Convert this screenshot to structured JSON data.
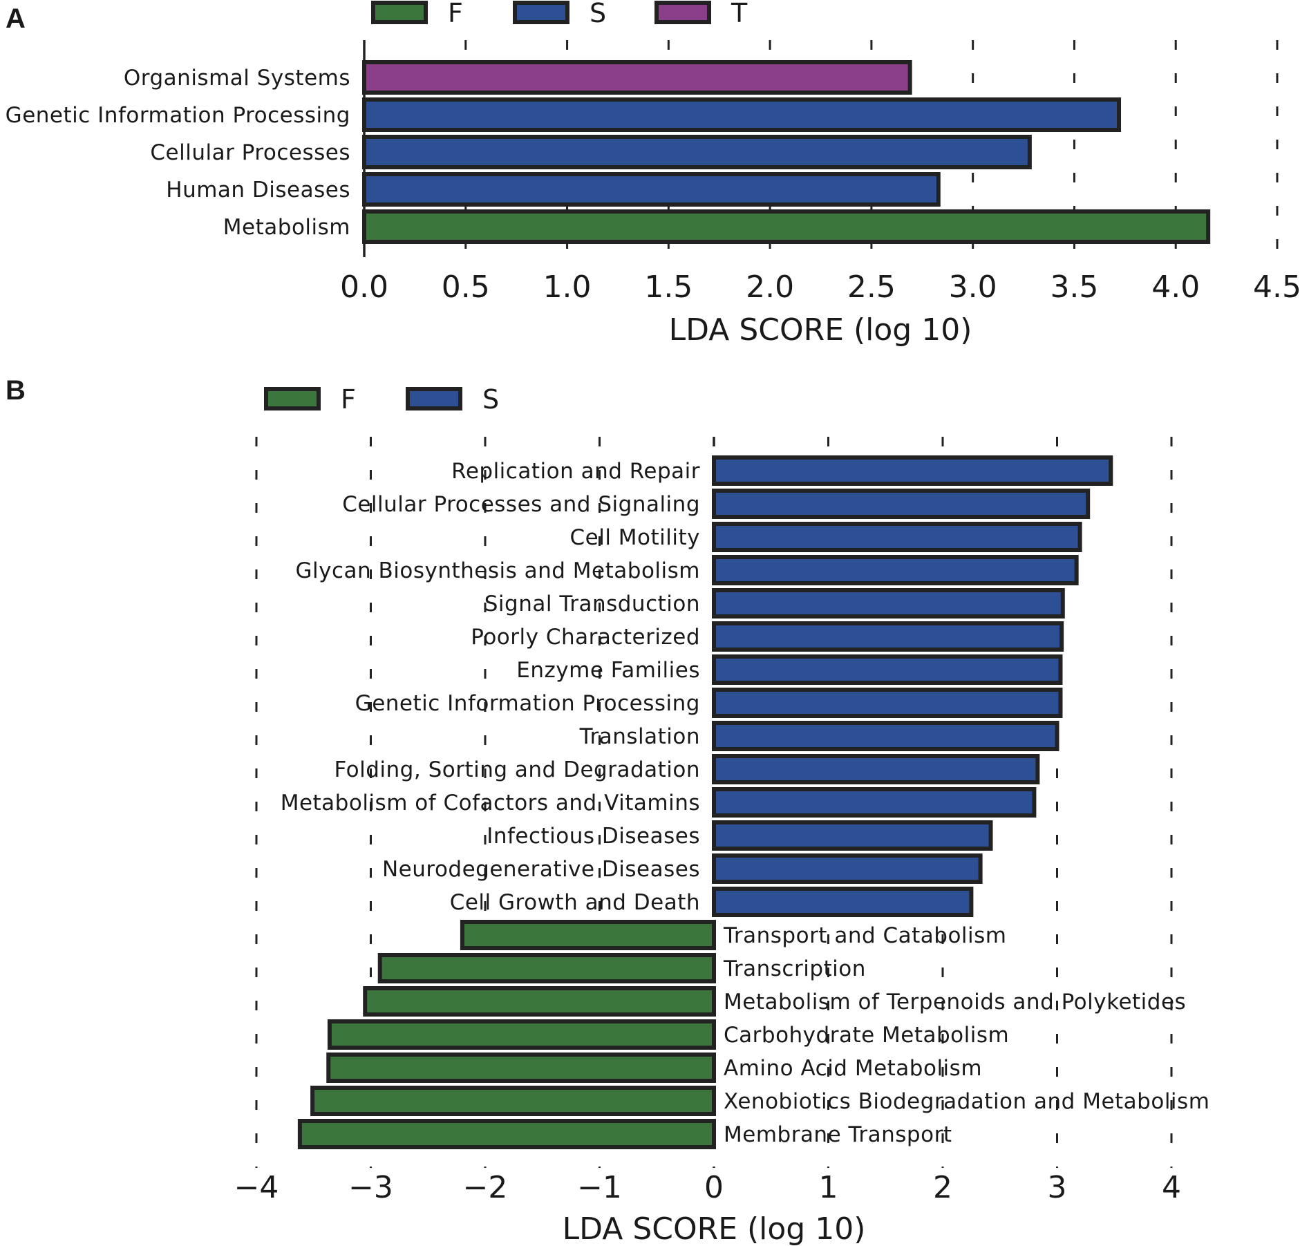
{
  "colors": {
    "F": "#3b763d",
    "S": "#2d4f94",
    "T": "#8b3f8b",
    "edge": "#222222",
    "grid": "#222222"
  },
  "chart_data": [
    {
      "panel": "A",
      "type": "bar",
      "orientation": "horizontal",
      "xlabel": "LDA SCORE (log 10)",
      "xlim": [
        0,
        4.5
      ],
      "ticks": [
        0.0,
        0.5,
        1.0,
        1.5,
        2.0,
        2.5,
        3.0,
        3.5,
        4.0,
        4.5
      ],
      "tick_labels": [
        "0.0",
        "0.5",
        "1.0",
        "1.5",
        "2.0",
        "2.5",
        "3.0",
        "3.5",
        "4.0",
        "4.5"
      ],
      "legend": [
        {
          "key": "F",
          "label": "F"
        },
        {
          "key": "S",
          "label": "S"
        },
        {
          "key": "T",
          "label": "T"
        }
      ],
      "bars": [
        {
          "label": "Organismal Systems",
          "value": 2.69,
          "group": "T"
        },
        {
          "label": "Genetic Information Processing",
          "value": 3.72,
          "group": "S"
        },
        {
          "label": "Cellular Processes",
          "value": 3.28,
          "group": "S"
        },
        {
          "label": "Human Diseases",
          "value": 2.83,
          "group": "S"
        },
        {
          "label": "Metabolism",
          "value": 4.16,
          "group": "F"
        }
      ]
    },
    {
      "panel": "B",
      "type": "bar",
      "orientation": "horizontal",
      "xlabel": "LDA SCORE (log 10)",
      "xlim": [
        -4,
        4
      ],
      "ticks": [
        -4,
        -3,
        -2,
        -1,
        0,
        1,
        2,
        3,
        4
      ],
      "tick_labels": [
        "−4",
        "−3",
        "−2",
        "−1",
        "0",
        "1",
        "2",
        "3",
        "4"
      ],
      "legend": [
        {
          "key": "F",
          "label": "F"
        },
        {
          "key": "S",
          "label": "S"
        }
      ],
      "bars": [
        {
          "label": "Replication and Repair",
          "value": 3.47,
          "group": "S"
        },
        {
          "label": "Cellular Processes and Signaling",
          "value": 3.27,
          "group": "S"
        },
        {
          "label": "Cell Motility",
          "value": 3.2,
          "group": "S"
        },
        {
          "label": "Glycan Biosynthesis and Metabolism",
          "value": 3.17,
          "group": "S"
        },
        {
          "label": "Signal Transduction",
          "value": 3.05,
          "group": "S"
        },
        {
          "label": "Poorly Characterized",
          "value": 3.04,
          "group": "S"
        },
        {
          "label": "Enzyme Families",
          "value": 3.03,
          "group": "S"
        },
        {
          "label": "Genetic Information Processing",
          "value": 3.03,
          "group": "S"
        },
        {
          "label": "Translation",
          "value": 3.0,
          "group": "S"
        },
        {
          "label": "Folding, Sorting and Degradation",
          "value": 2.83,
          "group": "S"
        },
        {
          "label": "Metabolism of Cofactors and Vitamins",
          "value": 2.8,
          "group": "S"
        },
        {
          "label": "Infectious Diseases",
          "value": 2.42,
          "group": "S"
        },
        {
          "label": "Neurodegenerative Diseases",
          "value": 2.33,
          "group": "S"
        },
        {
          "label": "Cell Growth and Death",
          "value": 2.25,
          "group": "S"
        },
        {
          "label": "Transport and Catabolism",
          "value": -2.2,
          "group": "F"
        },
        {
          "label": "Transcription",
          "value": -2.92,
          "group": "F"
        },
        {
          "label": "Metabolism of Terpenoids and Polyketides",
          "value": -3.05,
          "group": "F"
        },
        {
          "label": "Carbohydrate Metabolism",
          "value": -3.36,
          "group": "F"
        },
        {
          "label": "Amino Acid Metabolism",
          "value": -3.37,
          "group": "F"
        },
        {
          "label": "Xenobiotics Biodegradation and Metabolism",
          "value": -3.51,
          "group": "F"
        },
        {
          "label": "Membrane Transport",
          "value": -3.62,
          "group": "F"
        }
      ]
    }
  ]
}
